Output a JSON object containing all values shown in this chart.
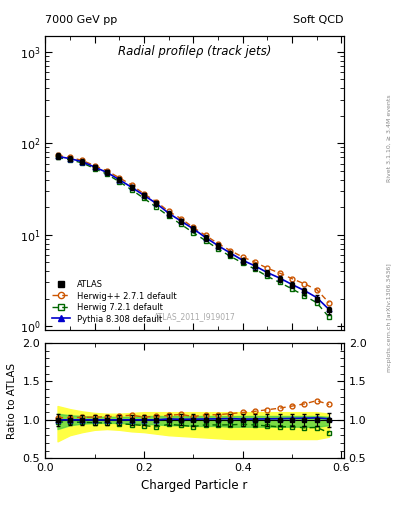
{
  "title_top_left": "7000 GeV pp",
  "title_top_right": "Soft QCD",
  "main_title": "Radial profileρ (track jets)",
  "right_label_top": "Rivet 3.1.10, ≥ 3.4M events",
  "right_label_bot": "mcplots.cern.ch [arXiv:1306.3436]",
  "watermark": "ATLAS_2011_I919017",
  "xlabel": "Charged Particle r",
  "ylabel_ratio": "Ratio to ATLAS",
  "ylim_main": [
    0.9,
    1500
  ],
  "ylim_ratio": [
    0.5,
    2.0
  ],
  "xlim": [
    0.0,
    0.605
  ],
  "x_data": [
    0.025,
    0.05,
    0.075,
    0.1,
    0.125,
    0.15,
    0.175,
    0.2,
    0.225,
    0.25,
    0.275,
    0.3,
    0.325,
    0.35,
    0.375,
    0.4,
    0.425,
    0.45,
    0.475,
    0.5,
    0.525,
    0.55,
    0.575
  ],
  "atlas_y": [
    72,
    68,
    63,
    55,
    48,
    40,
    33,
    27,
    22,
    17,
    14,
    11.5,
    9.2,
    7.5,
    6.2,
    5.2,
    4.5,
    3.8,
    3.3,
    2.8,
    2.4,
    2.0,
    1.5
  ],
  "atlas_yerr": [
    5.5,
    4.5,
    4.0,
    3.5,
    3.0,
    2.5,
    2.2,
    1.8,
    1.5,
    1.2,
    1.0,
    0.85,
    0.7,
    0.6,
    0.5,
    0.42,
    0.36,
    0.3,
    0.26,
    0.22,
    0.19,
    0.16,
    0.13
  ],
  "herwig_pp_y": [
    74,
    70,
    65,
    57,
    50,
    42,
    35,
    28,
    23,
    18,
    15,
    12,
    9.8,
    8.0,
    6.7,
    5.7,
    5.0,
    4.3,
    3.8,
    3.3,
    2.9,
    2.5,
    1.8
  ],
  "herwig72_y": [
    70,
    66,
    61,
    53,
    46,
    38,
    31,
    25,
    20,
    16,
    13,
    10.5,
    8.6,
    7.0,
    5.8,
    4.9,
    4.2,
    3.5,
    3.0,
    2.55,
    2.15,
    1.8,
    1.25
  ],
  "pythia_y": [
    72,
    68,
    63,
    55,
    48,
    40,
    33,
    27,
    22,
    17.2,
    14.1,
    11.6,
    9.3,
    7.6,
    6.3,
    5.25,
    4.55,
    3.85,
    3.35,
    2.85,
    2.45,
    2.05,
    1.52
  ],
  "atlas_band_lo": [
    0.72,
    0.8,
    0.84,
    0.87,
    0.88,
    0.87,
    0.85,
    0.84,
    0.82,
    0.8,
    0.79,
    0.78,
    0.77,
    0.76,
    0.75,
    0.75,
    0.75,
    0.75,
    0.75,
    0.75,
    0.75,
    0.75,
    0.78
  ],
  "atlas_band_hi": [
    1.18,
    1.14,
    1.11,
    1.09,
    1.08,
    1.08,
    1.09,
    1.1,
    1.1,
    1.1,
    1.1,
    1.1,
    1.1,
    1.1,
    1.1,
    1.1,
    1.1,
    1.1,
    1.1,
    1.1,
    1.1,
    1.1,
    1.08
  ],
  "atlas_band_green_lo": [
    0.88,
    0.93,
    0.95,
    0.96,
    0.96,
    0.96,
    0.95,
    0.95,
    0.94,
    0.93,
    0.93,
    0.92,
    0.92,
    0.92,
    0.91,
    0.91,
    0.91,
    0.91,
    0.91,
    0.91,
    0.91,
    0.91,
    0.93
  ],
  "atlas_band_green_hi": [
    1.08,
    1.06,
    1.05,
    1.04,
    1.04,
    1.04,
    1.04,
    1.05,
    1.05,
    1.05,
    1.05,
    1.05,
    1.05,
    1.05,
    1.05,
    1.05,
    1.05,
    1.05,
    1.05,
    1.05,
    1.05,
    1.05,
    1.04
  ],
  "herwig_pp_ratio": [
    1.028,
    1.029,
    1.032,
    1.036,
    1.04,
    1.05,
    1.06,
    1.037,
    1.045,
    1.059,
    1.071,
    1.043,
    1.065,
    1.067,
    1.081,
    1.096,
    1.111,
    1.132,
    1.152,
    1.179,
    1.208,
    1.25,
    1.2
  ],
  "herwig72_ratio": [
    0.972,
    0.971,
    0.968,
    0.964,
    0.958,
    0.95,
    0.939,
    0.926,
    0.909,
    0.941,
    0.929,
    0.913,
    0.935,
    0.933,
    0.935,
    0.942,
    0.933,
    0.921,
    0.909,
    0.911,
    0.896,
    0.9,
    0.833
  ],
  "pythia_ratio": [
    1.0,
    1.0,
    1.0,
    1.0,
    1.0,
    1.0,
    1.0,
    1.0,
    1.0,
    1.012,
    1.007,
    1.009,
    1.011,
    1.013,
    1.016,
    1.01,
    1.011,
    1.013,
    1.015,
    1.018,
    1.021,
    1.025,
    1.013
  ],
  "atlas_ratio_err": [
    0.076,
    0.066,
    0.063,
    0.064,
    0.063,
    0.063,
    0.067,
    0.067,
    0.068,
    0.071,
    0.071,
    0.074,
    0.076,
    0.08,
    0.081,
    0.081,
    0.08,
    0.079,
    0.079,
    0.079,
    0.079,
    0.08,
    0.087
  ],
  "color_atlas": "#000000",
  "color_herwig_pp": "#cc5500",
  "color_herwig72": "#006600",
  "color_pythia": "#0000cc",
  "color_band_yellow": "#ffff44",
  "color_band_green": "#44cc44",
  "legend_entries": [
    "ATLAS",
    "Herwig++ 2.7.1 default",
    "Herwig 7.2.1 default",
    "Pythia 8.308 default"
  ]
}
